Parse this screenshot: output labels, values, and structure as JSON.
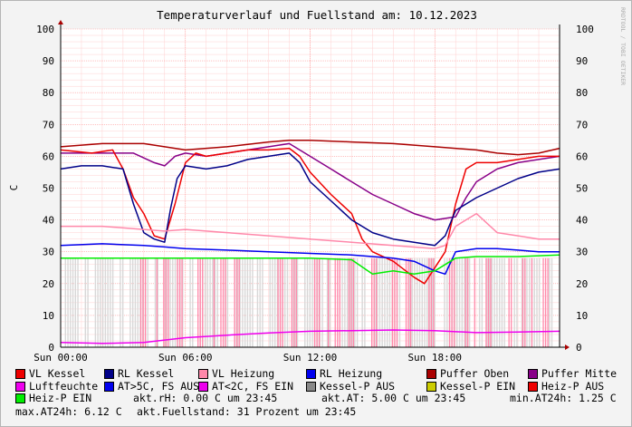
{
  "chart_data": {
    "type": "line",
    "title": "Temperaturverlauf und Fuellstand am: 10.12.2023",
    "ylabel": "C",
    "watermark": "RRDTOOL / TOBI OETIKER",
    "ylim": [
      0,
      100
    ],
    "y_ticks": [
      0,
      10,
      20,
      30,
      40,
      50,
      60,
      70,
      80,
      90,
      100
    ],
    "x_ticks": [
      {
        "label": "Sun 00:00",
        "hour": 0
      },
      {
        "label": "Sun 06:00",
        "hour": 6
      },
      {
        "label": "Sun 12:00",
        "hour": 12
      },
      {
        "label": "Sun 18:00",
        "hour": 18
      }
    ],
    "x_range_hours": [
      0,
      24
    ],
    "series": [
      {
        "name": "Puffer Oben",
        "color": "#aa0000",
        "x": [
          0,
          2,
          4,
          6,
          8,
          10,
          11,
          12,
          14,
          16,
          18,
          20,
          21,
          22,
          23,
          24
        ],
        "y": [
          63,
          64,
          64,
          62,
          63,
          64.5,
          65,
          65,
          64.5,
          64,
          63,
          62,
          61,
          60.5,
          61,
          62.5
        ]
      },
      {
        "name": "Puffer Mitte",
        "color": "#880088",
        "x": [
          0,
          1.5,
          2.5,
          3.5,
          4.5,
          5,
          5.5,
          6,
          7,
          8,
          9,
          10,
          11,
          12,
          13,
          14,
          15,
          16,
          17,
          18,
          19,
          19.5,
          20,
          21,
          22,
          23,
          24
        ],
        "y": [
          61,
          61,
          61,
          61,
          58,
          57,
          60,
          61,
          60,
          61,
          62,
          63,
          64,
          60,
          56,
          52,
          48,
          45,
          42,
          40,
          41,
          47,
          52,
          56,
          58,
          59,
          60
        ]
      },
      {
        "name": "VL Kessel",
        "color": "#ee0000",
        "x": [
          0,
          1.5,
          2.5,
          3,
          3.5,
          4,
          4.5,
          5,
          5.5,
          6,
          6.5,
          7,
          8,
          9,
          10,
          11,
          11.5,
          12,
          13,
          14,
          14.5,
          15,
          16,
          17,
          17.5,
          18,
          18.5,
          19,
          19.5,
          20,
          21,
          22,
          23,
          24
        ],
        "y": [
          62,
          61,
          62,
          56,
          47,
          42,
          35,
          34,
          45,
          58,
          61,
          60,
          61,
          62,
          62,
          62.5,
          60,
          55,
          48,
          42,
          34,
          30,
          27,
          22,
          20,
          25,
          30,
          45,
          56,
          58,
          58,
          59,
          60,
          60
        ]
      },
      {
        "name": "RL Kessel",
        "color": "#000088",
        "x": [
          0,
          1,
          2,
          3,
          3.5,
          4,
          4.5,
          5,
          5.3,
          5.6,
          6,
          7,
          8,
          9,
          10,
          11,
          11.5,
          12,
          13,
          14,
          15,
          16,
          17,
          18,
          18.5,
          19,
          20,
          21,
          22,
          23,
          24
        ],
        "y": [
          56,
          57,
          57,
          56,
          45,
          36,
          34,
          33,
          44,
          53,
          57,
          56,
          57,
          59,
          60,
          61,
          58,
          52,
          46,
          40,
          36,
          34,
          33,
          32,
          35,
          43,
          47,
          50,
          53,
          55,
          56
        ]
      },
      {
        "name": "VL Heizung",
        "color": "#ff88aa",
        "x": [
          0,
          2,
          4,
          5,
          6,
          8,
          10,
          12,
          14,
          16,
          18,
          18.5,
          19,
          20,
          21,
          22,
          23,
          24
        ],
        "y": [
          38,
          38,
          37,
          36.5,
          37,
          36,
          35,
          34,
          33,
          32,
          31,
          32,
          38,
          42,
          36,
          35,
          34,
          34
        ]
      },
      {
        "name": "RL Heizung",
        "color": "#0000ee",
        "x": [
          0,
          2,
          4,
          5,
          6,
          8,
          10,
          12,
          14,
          16,
          17,
          18,
          18.5,
          19,
          20,
          21,
          22,
          23,
          24
        ],
        "y": [
          32,
          32.5,
          32,
          31.5,
          31,
          30.5,
          30,
          29.5,
          29,
          28,
          27,
          24,
          23,
          30,
          31,
          31,
          30.5,
          30,
          30
        ]
      },
      {
        "name": "Heiz-P EIN",
        "color": "#00ee00",
        "x": [
          0,
          4,
          8,
          12,
          14,
          15,
          16,
          17,
          18,
          19,
          20,
          22,
          24
        ],
        "y": [
          28,
          28,
          28,
          28,
          27.5,
          23,
          24,
          23,
          24,
          28,
          28.5,
          28.5,
          29
        ]
      },
      {
        "name": "Luftfeuchte",
        "color": "#ee00ee",
        "x": [
          0,
          2,
          4,
          6,
          8,
          10,
          12,
          14,
          16,
          18,
          20,
          22,
          24
        ],
        "y": [
          1.5,
          1.2,
          1.5,
          3,
          3.8,
          4.5,
          5,
          5.2,
          5.4,
          5.2,
          4.6,
          4.8,
          5
        ]
      }
    ],
    "legend": [
      [
        {
          "label": "VL Kessel",
          "color": "#ee0000"
        },
        {
          "label": "RL Kessel",
          "color": "#000088"
        },
        {
          "label": "VL Heizung",
          "color": "#ff88aa"
        },
        {
          "label": "RL Heizung",
          "color": "#0000ee"
        },
        {
          "label": "Puffer Oben",
          "color": "#aa0000"
        },
        {
          "label": "Puffer Mitte",
          "color": "#880088"
        }
      ],
      [
        {
          "label": "Luftfeuchte",
          "color": "#ee00ee"
        },
        {
          "label": "AT>5C, FS AUS",
          "color": "#0000ee"
        },
        {
          "label": "AT<2C, FS EIN",
          "color": "#ee00ee"
        },
        {
          "label": "Kessel-P AUS",
          "color": "#888888"
        },
        {
          "label": "Kessel-P EIN",
          "color": "#cccc00"
        },
        {
          "label": "Heiz-P AUS",
          "color": "#ee0000"
        }
      ],
      [
        {
          "label": "Heiz-P EIN",
          "color": "#00ee00"
        }
      ]
    ],
    "info_line1": {
      "rh": "akt.rH: 0.00 C um 23:45",
      "at": "akt.AT: 5.00 C um 23:45",
      "min": "min.AT24h: 1.25 C"
    },
    "info_line2": {
      "max": "max.AT24h: 6.12 C",
      "fuell": "akt.Fuellstand:   31 Prozent um 23:45"
    }
  }
}
